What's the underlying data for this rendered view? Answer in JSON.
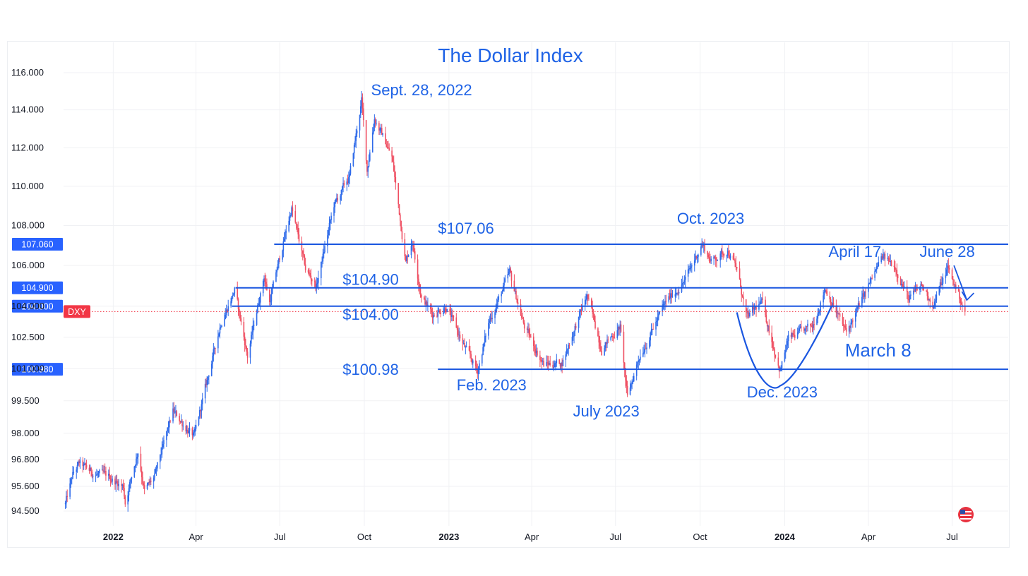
{
  "chart_data": {
    "type": "candlestick",
    "title": "The Dollar Index",
    "symbol": "DXY",
    "colors": {
      "up": "#2f6bea",
      "down": "#ef4f62",
      "line": "#1a56e0",
      "text": "#1f63e6",
      "symbol_badge": "#f23645"
    },
    "y_axis": {
      "ticks": [
        {
          "v": 116.0,
          "label": "116.000"
        },
        {
          "v": 114.0,
          "label": "114.000"
        },
        {
          "v": 112.0,
          "label": "112.000"
        },
        {
          "v": 110.0,
          "label": "110.000"
        },
        {
          "v": 108.0,
          "label": "108.000"
        },
        {
          "v": 106.0,
          "label": "106.000"
        },
        {
          "v": 104.0,
          "label": "104.000"
        },
        {
          "v": 102.5,
          "label": "102.500"
        },
        {
          "v": 101.0,
          "label": "101.000"
        },
        {
          "v": 99.5,
          "label": "99.500"
        },
        {
          "v": 98.0,
          "label": "98.000"
        },
        {
          "v": 96.8,
          "label": "96.800"
        },
        {
          "v": 95.6,
          "label": "95.600"
        },
        {
          "v": 94.5,
          "label": "94.500"
        }
      ],
      "scale": "log",
      "range": [
        93.9,
        117.0
      ],
      "grid": true
    },
    "x_axis": {
      "start": "2021-11-08",
      "end": "2024-08-31",
      "ticks": [
        {
          "date": "2022-01-01",
          "label": "2022",
          "bold": true
        },
        {
          "date": "2022-04-01",
          "label": "Apr",
          "bold": false
        },
        {
          "date": "2022-07-01",
          "label": "Jul",
          "bold": false
        },
        {
          "date": "2022-10-01",
          "label": "Oct",
          "bold": false
        },
        {
          "date": "2023-01-01",
          "label": "2023",
          "bold": true
        },
        {
          "date": "2023-04-01",
          "label": "Apr",
          "bold": false
        },
        {
          "date": "2023-07-01",
          "label": "Jul",
          "bold": false
        },
        {
          "date": "2023-10-01",
          "label": "Oct",
          "bold": false
        },
        {
          "date": "2024-01-01",
          "label": "2024",
          "bold": true
        },
        {
          "date": "2024-04-01",
          "label": "Apr",
          "bold": false
        },
        {
          "date": "2024-07-01",
          "label": "Jul",
          "bold": false
        }
      ],
      "grid": true
    },
    "price_path": [
      [
        "2021-11-10",
        94.8
      ],
      [
        "2021-11-18",
        96.1
      ],
      [
        "2021-11-25",
        96.6
      ],
      [
        "2021-12-10",
        96.2
      ],
      [
        "2021-12-28",
        96.0
      ],
      [
        "2022-01-12",
        95.6
      ],
      [
        "2022-01-14",
        94.9
      ],
      [
        "2022-01-28",
        97.2
      ],
      [
        "2022-02-04",
        95.4
      ],
      [
        "2022-02-15",
        96.0
      ],
      [
        "2022-03-07",
        99.0
      ],
      [
        "2022-03-15",
        98.6
      ],
      [
        "2022-03-30",
        97.8
      ],
      [
        "2022-04-28",
        103.2
      ],
      [
        "2022-05-13",
        104.8
      ],
      [
        "2022-05-27",
        101.6
      ],
      [
        "2022-06-14",
        105.5
      ],
      [
        "2022-06-20",
        104.2
      ],
      [
        "2022-07-14",
        108.9
      ],
      [
        "2022-07-29",
        105.8
      ],
      [
        "2022-08-10",
        105.0
      ],
      [
        "2022-08-29",
        109.0
      ],
      [
        "2022-09-15",
        110.5
      ],
      [
        "2022-09-28",
        114.5
      ],
      [
        "2022-10-04",
        110.8
      ],
      [
        "2022-10-12",
        113.6
      ],
      [
        "2022-10-31",
        111.5
      ],
      [
        "2022-11-15",
        106.2
      ],
      [
        "2022-11-22",
        107.3
      ],
      [
        "2022-12-02",
        104.5
      ],
      [
        "2022-12-14",
        103.6
      ],
      [
        "2022-12-29",
        104.0
      ],
      [
        "2023-01-18",
        102.0
      ],
      [
        "2023-02-01",
        100.9
      ],
      [
        "2023-02-14",
        103.3
      ],
      [
        "2023-03-08",
        105.6
      ],
      [
        "2023-03-24",
        103.0
      ],
      [
        "2023-04-14",
        101.2
      ],
      [
        "2023-05-04",
        101.3
      ],
      [
        "2023-05-31",
        104.5
      ],
      [
        "2023-06-16",
        102.0
      ],
      [
        "2023-07-06",
        103.0
      ],
      [
        "2023-07-14",
        99.6
      ],
      [
        "2023-07-26",
        101.5
      ],
      [
        "2023-08-25",
        104.2
      ],
      [
        "2023-09-15",
        105.3
      ],
      [
        "2023-10-03",
        107.1
      ],
      [
        "2023-10-13",
        106.2
      ],
      [
        "2023-10-31",
        106.8
      ],
      [
        "2023-11-10",
        105.8
      ],
      [
        "2023-11-21",
        103.4
      ],
      [
        "2023-12-07",
        104.2
      ],
      [
        "2023-12-27",
        100.9
      ],
      [
        "2024-01-05",
        102.4
      ],
      [
        "2024-01-31",
        103.0
      ],
      [
        "2024-02-14",
        104.9
      ],
      [
        "2024-03-08",
        102.7
      ],
      [
        "2024-03-28",
        104.6
      ],
      [
        "2024-04-16",
        106.4
      ],
      [
        "2024-04-30",
        106.0
      ],
      [
        "2024-05-15",
        104.3
      ],
      [
        "2024-05-29",
        105.0
      ],
      [
        "2024-06-11",
        104.1
      ],
      [
        "2024-06-26",
        105.9
      ],
      [
        "2024-07-05",
        104.9
      ],
      [
        "2024-07-12",
        104.1
      ],
      [
        "2024-07-15",
        103.7
      ]
    ],
    "last_price": 103.74,
    "horizontal_lines": [
      {
        "value": 107.06,
        "label": "$107.06",
        "badge": "107.060",
        "from": "2022-06-25",
        "to": "2024-08-31"
      },
      {
        "value": 104.9,
        "label": "$104.90",
        "badge": "104.900",
        "from": "2022-05-14",
        "to": "2024-08-31"
      },
      {
        "value": 104.0,
        "label": "$104.00",
        "badge": "104.000",
        "from": "2022-05-10",
        "to": "2024-08-31"
      },
      {
        "value": 100.98,
        "label": "$100.98",
        "badge": "100.980",
        "from": "2022-12-20",
        "to": "2024-08-31"
      }
    ],
    "annotations": [
      {
        "text": "Sept. 28, 2022",
        "date": "2022-09-28"
      },
      {
        "text": "Oct. 2023",
        "date": "2023-10-01"
      },
      {
        "text": "April 17",
        "date": "2024-04-17"
      },
      {
        "text": "June 28",
        "date": "2024-06-28"
      },
      {
        "text": "Feb. 2023",
        "date": "2023-02-01"
      },
      {
        "text": "July 2023",
        "date": "2023-07-14"
      },
      {
        "text": "Dec. 2023",
        "date": "2023-12-27"
      },
      {
        "text": "March 8",
        "date": "2024-03-08"
      }
    ],
    "cup_shape": {
      "from": "2023-11-10",
      "bottom": "2023-12-27",
      "to": "2024-02-21",
      "low": 100.6
    },
    "arrow": {
      "from_date": "2024-07-03",
      "to_date": "2024-07-17",
      "value_start": 106.0,
      "value_end": 104.3
    },
    "grid": true
  }
}
